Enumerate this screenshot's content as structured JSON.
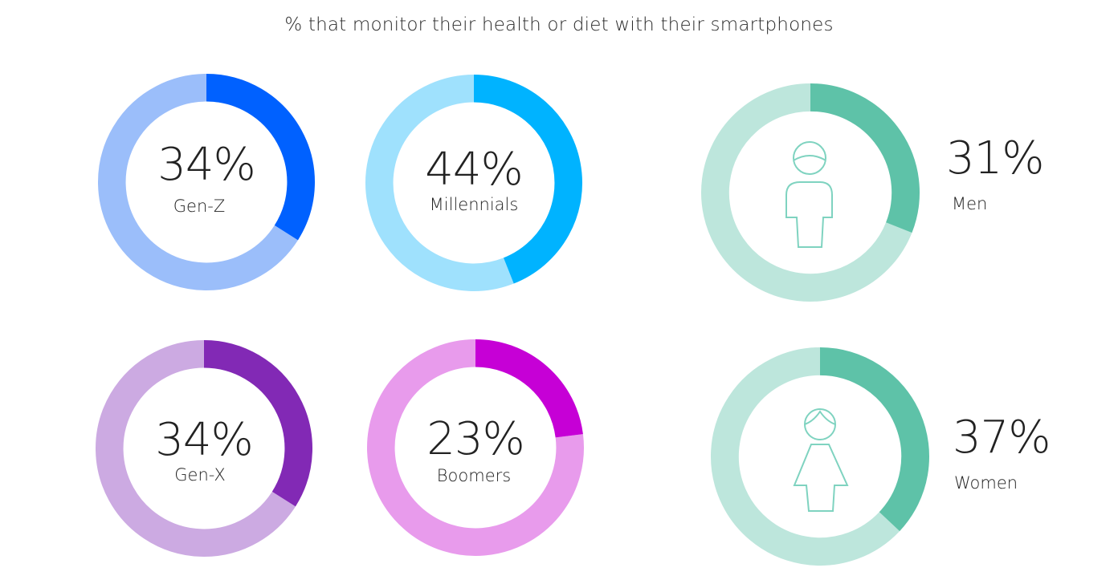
{
  "title": "% that monitor their health or diet with their smartphones",
  "chart_data": [
    {
      "type": "pie",
      "id": "gen-z",
      "category": "Gen-Z",
      "value": 34,
      "value_label": "34%",
      "colors": {
        "filled": "#0061ff",
        "remaining": "#9bbefa"
      }
    },
    {
      "type": "pie",
      "id": "millennials",
      "category": "Millennials",
      "value": 44,
      "value_label": "44%",
      "colors": {
        "filled": "#00b3ff",
        "remaining": "#9fe1fd"
      }
    },
    {
      "type": "pie",
      "id": "gen-x",
      "category": "Gen-X",
      "value": 34,
      "value_label": "34%",
      "colors": {
        "filled": "#8229b5",
        "remaining": "#ccaae2"
      }
    },
    {
      "type": "pie",
      "id": "boomers",
      "category": "Boomers",
      "value": 23,
      "value_label": "23%",
      "colors": {
        "filled": "#c600d6",
        "remaining": "#e89bec"
      }
    },
    {
      "type": "pie",
      "id": "men",
      "category": "Men",
      "value": 31,
      "value_label": "31%",
      "icon": "man-icon",
      "colors": {
        "filled": "#5ec2a8",
        "remaining": "#bde6dc"
      }
    },
    {
      "type": "pie",
      "id": "women",
      "category": "Women",
      "value": 37,
      "value_label": "37%",
      "icon": "woman-icon",
      "colors": {
        "filled": "#5ec2a8",
        "remaining": "#bde6dc"
      }
    }
  ]
}
